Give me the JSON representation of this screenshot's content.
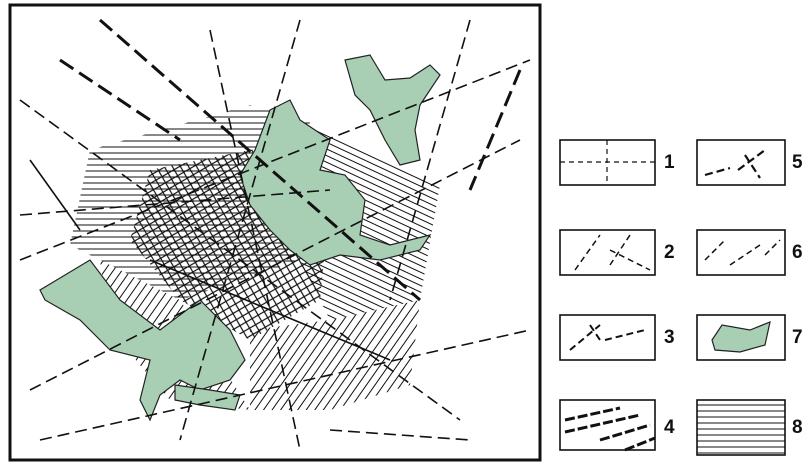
{
  "legend": {
    "items": [
      {
        "label": "1"
      },
      {
        "label": "2"
      },
      {
        "label": "3"
      },
      {
        "label": "4"
      },
      {
        "label": "5"
      },
      {
        "label": "6"
      },
      {
        "label": "7"
      },
      {
        "label": "8"
      }
    ]
  }
}
